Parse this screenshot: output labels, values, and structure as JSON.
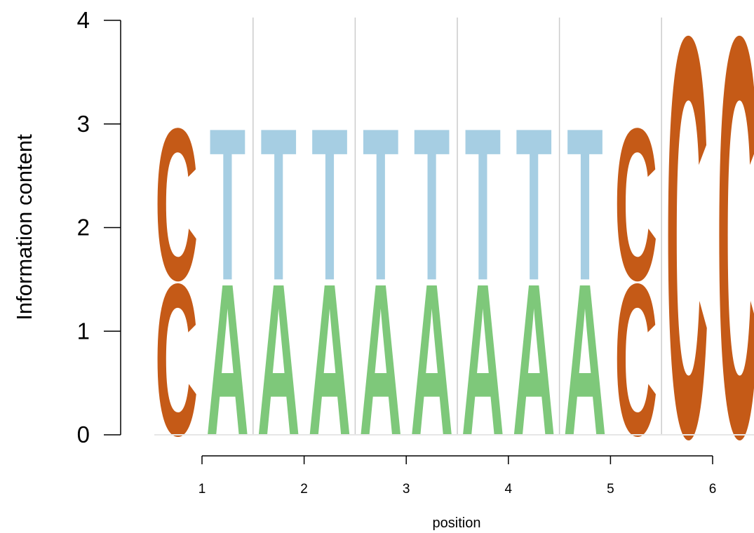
{
  "chart_data": {
    "type": "sequence-logo",
    "ylabel": "Information content",
    "xlabel": "position",
    "ylim": [
      0,
      4
    ],
    "yticks": [
      "0",
      "1",
      "2",
      "3",
      "4"
    ],
    "xticks": [
      "1",
      "2",
      "3",
      "4",
      "5",
      "6"
    ],
    "x_tick_values": [
      1,
      2,
      3,
      4,
      5,
      6
    ],
    "x_range": [
      0.5,
      6.5
    ],
    "column_width": 0.5,
    "separators": [
      1.5,
      2.5,
      3.5,
      4.5,
      5.5
    ],
    "colors": {
      "A": "#7ec87a",
      "C": "#c55a17",
      "T": "#a6cee3"
    },
    "columns": [
      {
        "x": 0.75,
        "stack": [
          {
            "letter": "C",
            "height": 1.5
          },
          {
            "letter": "C",
            "height": 1.5
          }
        ]
      },
      {
        "x": 1.25,
        "stack": [
          {
            "letter": "A",
            "height": 1.5
          },
          {
            "letter": "T",
            "height": 1.5
          }
        ]
      },
      {
        "x": 1.75,
        "stack": [
          {
            "letter": "A",
            "height": 1.5
          },
          {
            "letter": "T",
            "height": 1.5
          }
        ]
      },
      {
        "x": 2.25,
        "stack": [
          {
            "letter": "A",
            "height": 1.5
          },
          {
            "letter": "T",
            "height": 1.5
          }
        ]
      },
      {
        "x": 2.75,
        "stack": [
          {
            "letter": "A",
            "height": 1.5
          },
          {
            "letter": "T",
            "height": 1.5
          }
        ]
      },
      {
        "x": 3.25,
        "stack": [
          {
            "letter": "A",
            "height": 1.5
          },
          {
            "letter": "T",
            "height": 1.5
          }
        ]
      },
      {
        "x": 3.75,
        "stack": [
          {
            "letter": "A",
            "height": 1.5
          },
          {
            "letter": "T",
            "height": 1.5
          }
        ]
      },
      {
        "x": 4.25,
        "stack": [
          {
            "letter": "A",
            "height": 1.5
          },
          {
            "letter": "T",
            "height": 1.5
          }
        ]
      },
      {
        "x": 4.75,
        "stack": [
          {
            "letter": "A",
            "height": 1.5
          },
          {
            "letter": "T",
            "height": 1.5
          }
        ]
      },
      {
        "x": 5.25,
        "stack": [
          {
            "letter": "C",
            "height": 1.5
          },
          {
            "letter": "C",
            "height": 1.5
          }
        ]
      },
      {
        "x": 5.75,
        "stack": [
          {
            "letter": "C",
            "height": 3.95
          }
        ]
      },
      {
        "x": 6.25,
        "stack": [
          {
            "letter": "C",
            "height": 3.95
          }
        ]
      }
    ]
  }
}
